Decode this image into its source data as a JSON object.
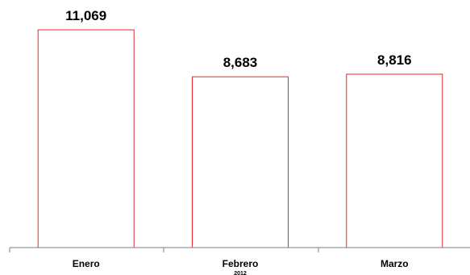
{
  "chart_data": {
    "type": "bar",
    "categories": [
      "Enero",
      "Febrero",
      "Marzo"
    ],
    "values": [
      11069,
      8683,
      8816
    ],
    "value_labels": [
      "11,069",
      "8,683",
      "8,816"
    ],
    "x_sublabel": "2012",
    "title": "",
    "xlabel": "",
    "ylabel": "",
    "ylim": [
      0,
      13000
    ],
    "grid": false,
    "legend": "none",
    "colors": {
      "bar_fill": "#ffffff",
      "bar_stroke": "#e8262b",
      "axis": "#7f7f7f"
    }
  }
}
